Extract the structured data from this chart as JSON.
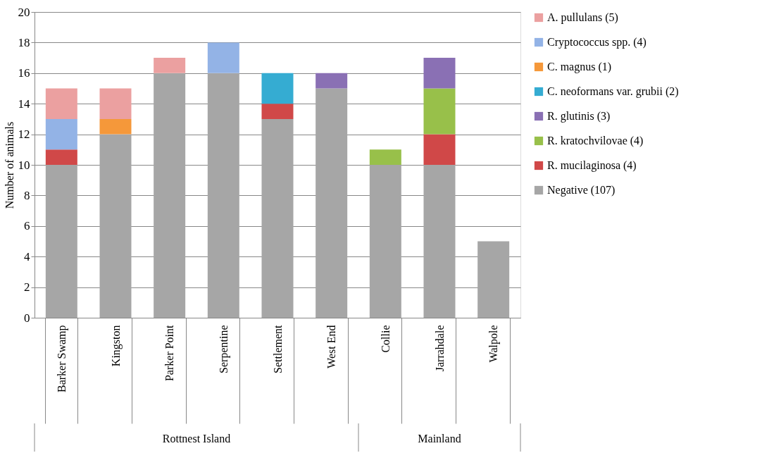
{
  "chart_data": {
    "type": "bar",
    "stacked": true,
    "ylabel": "Number of animals",
    "categories": [
      "Barker Swamp",
      "Kingston",
      "Parker Point",
      "Serpentine",
      "Settlement",
      "West End",
      "Collie",
      "Jarrahdale",
      "Walpole"
    ],
    "series": [
      {
        "name": "Negative (107)",
        "color": "#a6a6a6",
        "values": [
          10,
          12,
          16,
          16,
          13,
          15,
          10,
          10,
          5
        ]
      },
      {
        "name": "R. mucilaginosa (4)",
        "color": "#d04848",
        "values": [
          1,
          0,
          0,
          0,
          1,
          0,
          0,
          2,
          0
        ]
      },
      {
        "name": "R. kratochvilovae (4)",
        "color": "#98c04a",
        "values": [
          0,
          0,
          0,
          0,
          0,
          0,
          1,
          3,
          0
        ]
      },
      {
        "name": "R. glutinis (3)",
        "color": "#8a70b4",
        "values": [
          0,
          0,
          0,
          0,
          0,
          1,
          0,
          2,
          0
        ]
      },
      {
        "name": "C. neoformans var. grubii (2)",
        "color": "#35acd2",
        "values": [
          0,
          0,
          0,
          0,
          2,
          0,
          0,
          0,
          0
        ]
      },
      {
        "name": "C. magnus (1)",
        "color": "#f5983a",
        "values": [
          0,
          1,
          0,
          0,
          0,
          0,
          0,
          0,
          0
        ]
      },
      {
        "name": "Cryptococcus spp. (4)",
        "color": "#93b3e6",
        "values": [
          2,
          0,
          0,
          2,
          0,
          0,
          0,
          0,
          0
        ]
      },
      {
        "name": "A. pullulans (5)",
        "color": "#eba0a0",
        "values": [
          2,
          2,
          1,
          0,
          0,
          0,
          0,
          0,
          0
        ]
      }
    ],
    "ylim": [
      0,
      20
    ],
    "yticks": [
      0,
      2,
      4,
      6,
      8,
      10,
      12,
      14,
      16,
      18,
      20
    ],
    "grid": "y",
    "legend": "right",
    "annotations": [
      "Rottnest Island",
      "Mainland"
    ]
  }
}
